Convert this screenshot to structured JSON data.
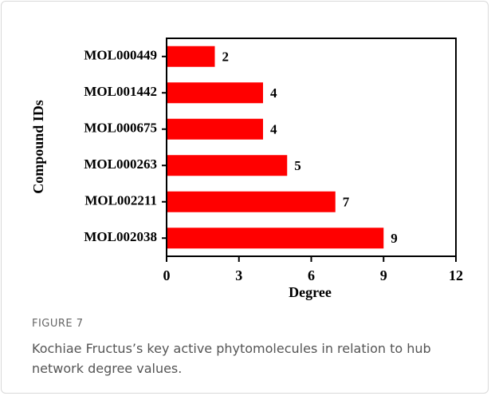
{
  "chart_data": {
    "type": "barh",
    "categories": [
      "MOL000449",
      "MOL001442",
      "MOL000675",
      "MOL000263",
      "MOL002211",
      "MOL002038"
    ],
    "values": [
      2,
      4,
      4,
      5,
      7,
      9
    ],
    "color": "#ff0000",
    "xlabel": "Degree",
    "ylabel": "Compound IDs",
    "xlim": [
      0,
      12
    ],
    "xticks": [
      0,
      3,
      6,
      9,
      12
    ]
  },
  "figure": {
    "label": "FIGURE 7",
    "caption": "Kochiae Fructus’s key active phytomolecules in relation to hub network degree values."
  }
}
